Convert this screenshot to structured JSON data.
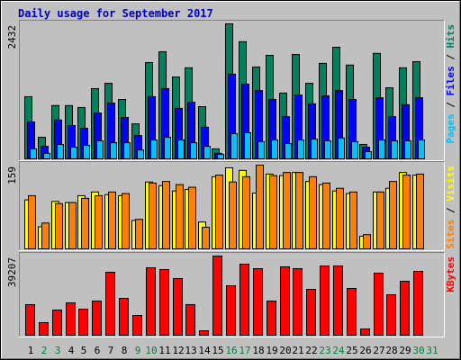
{
  "chart_data": {
    "type": "bar",
    "title": "Daily usage for September 2017",
    "categories": [
      "1",
      "2",
      "3",
      "4",
      "5",
      "6",
      "7",
      "8",
      "9",
      "10",
      "11",
      "12",
      "13",
      "14",
      "15",
      "16",
      "17",
      "18",
      "19",
      "20",
      "21",
      "22",
      "23",
      "24",
      "25",
      "26",
      "27",
      "28",
      "29",
      "30",
      "31"
    ],
    "category_colors": [
      "#000000",
      "#008040",
      "#008040",
      "#000000",
      "#000000",
      "#000000",
      "#000000",
      "#000000",
      "#008040",
      "#008040",
      "#000000",
      "#000000",
      "#000000",
      "#000000",
      "#000000",
      "#008040",
      "#008040",
      "#000000",
      "#000000",
      "#000000",
      "#000000",
      "#000000",
      "#008040",
      "#008040",
      "#000000",
      "#000000",
      "#000000",
      "#000000",
      "#000000",
      "#008040",
      "#008040"
    ],
    "panels": [
      {
        "ylim": [
          0,
          2432
        ],
        "yticks": [
          2432
        ],
        "series": [
          {
            "name": "Hits",
            "color": "#00805c",
            "values": [
              1120,
              390,
              960,
              960,
              925,
              1265,
              1360,
              1070,
              630,
              1735,
              1930,
              1475,
              1640,
              940,
              180,
              2432,
              2110,
              1655,
              1865,
              1185,
              1880,
              1360,
              1720,
              2010,
              1690,
              260,
              1900,
              1280,
              1640,
              1750,
              null
            ]
          },
          {
            "name": "Files",
            "color": "#0000ff",
            "values": [
              665,
              225,
              700,
              600,
              550,
              825,
              1005,
              745,
              420,
              1120,
              1265,
              910,
              1020,
              570,
              100,
              1525,
              1345,
              1230,
              1070,
              760,
              1150,
              990,
              1135,
              1230,
              1070,
              210,
              1100,
              760,
              975,
              1100,
              null
            ]
          },
          {
            "name": "Pages",
            "color": "#00c0ff",
            "values": [
              180,
              100,
              260,
              210,
              245,
              325,
              290,
              290,
              160,
              340,
              390,
              340,
              290,
              225,
              80,
              455,
              470,
              310,
              340,
              275,
              340,
              355,
              325,
              375,
              310,
              130,
              340,
              325,
              325,
              340,
              null
            ]
          }
        ]
      },
      {
        "ylim": [
          0,
          159
        ],
        "yticks": [
          159
        ],
        "series": [
          {
            "name": "Visits",
            "color": "#ffff00",
            "values": [
              93,
              42,
              90,
              88,
              101,
              108,
              103,
              101,
              54,
              127,
              120,
              110,
              113,
              51,
              137,
              154,
              149,
              106,
              142,
              139,
              145,
              128,
              122,
              110,
              105,
              24,
              108,
              115,
              145,
              140,
              null
            ]
          },
          {
            "name": "Sites",
            "color": "#ff8000",
            "values": [
              101,
              49,
              86,
              88,
              96,
              101,
              108,
              105,
              56,
              125,
              128,
              122,
              117,
              41,
              140,
              127,
              137,
              159,
              139,
              145,
              145,
              137,
              125,
              115,
              108,
              27,
              108,
              128,
              140,
              142,
              null
            ]
          }
        ]
      },
      {
        "ylim": [
          0,
          39207
        ],
        "yticks": [
          39207
        ],
        "series": [
          {
            "name": "KBytes",
            "color": "#ff0000",
            "values": [
              15150,
              6240,
              12470,
              16040,
              12920,
              16930,
              31190,
              18270,
              9800,
              33410,
              32520,
              28070,
              15150,
              2230,
              39207,
              24500,
              35200,
              32970,
              16930,
              33860,
              32970,
              22720,
              34300,
              34300,
              23170,
              3120,
              30740,
              20050,
              26730,
              31630,
              null
            ]
          }
        ]
      }
    ]
  }
}
